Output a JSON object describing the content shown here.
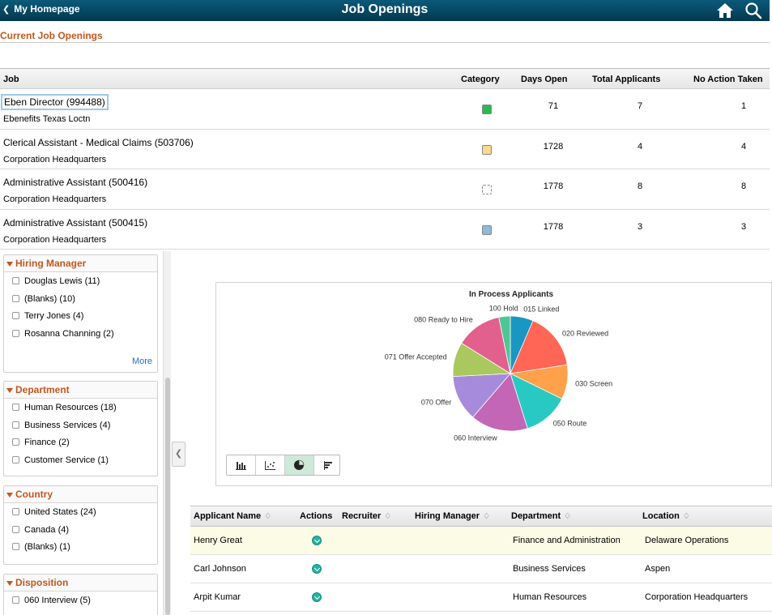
{
  "header": {
    "back_label": "My Homepage",
    "title": "Job Openings",
    "icons": [
      "home-icon",
      "search-icon"
    ]
  },
  "section_title": "Current Job Openings",
  "jobs": {
    "columns": [
      "Job",
      "Category",
      "Days Open",
      "Total Applicants",
      "No Action Taken"
    ],
    "rows": [
      {
        "name": "Eben Director (994488)",
        "location": "Ebenefits Texas Loctn",
        "category_color": "#2fb650",
        "days_open": "71",
        "total_applicants": "7",
        "no_action": "1"
      },
      {
        "name": "Clerical Assistant - Medical Claims (503706)",
        "location": "Corporation Headquarters",
        "category_color": "#f9d98e",
        "days_open": "1728",
        "total_applicants": "4",
        "no_action": "4"
      },
      {
        "name": "Administrative Assistant (500416)",
        "location": "Corporation Headquarters",
        "category_color": "#ffffff",
        "days_open": "1778",
        "total_applicants": "8",
        "no_action": "8"
      },
      {
        "name": "Administrative Assistant (500415)",
        "location": "Corporation Headquarters",
        "category_color": "#8fb9d6",
        "days_open": "1778",
        "total_applicants": "3",
        "no_action": "3"
      }
    ]
  },
  "facets": [
    {
      "title": "Hiring Manager",
      "options": [
        "Douglas Lewis (11)",
        "(Blanks) (10)",
        "Terry Jones (4)",
        "Rosanna Channing (2)"
      ],
      "more": "More"
    },
    {
      "title": "Department",
      "options": [
        "Human Resources (18)",
        "Business Services (4)",
        "Finance (2)",
        "Customer Service (1)"
      ]
    },
    {
      "title": "Country",
      "options": [
        "United States (24)",
        "Canada (4)",
        "(Blanks) (1)"
      ]
    },
    {
      "title": "Disposition",
      "options": [
        "060 Interview (5)"
      ]
    }
  ],
  "chart_data": {
    "type": "pie",
    "title": "In Process Applicants",
    "slices": [
      {
        "label": "015 Linked",
        "value": 2,
        "color": "#1a96c2"
      },
      {
        "label": "020 Reviewed",
        "value": 5,
        "color": "#ff6655"
      },
      {
        "label": "030 Screen",
        "value": 3,
        "color": "#ffa14a"
      },
      {
        "label": "050 Route",
        "value": 4,
        "color": "#28c9c3"
      },
      {
        "label": "060 Interview",
        "value": 5,
        "color": "#c266b5"
      },
      {
        "label": "070 Offer",
        "value": 4,
        "color": "#a68bdc"
      },
      {
        "label": "071 Offer Accepted",
        "value": 3,
        "color": "#a9c85e"
      },
      {
        "label": "080 Ready to Hire",
        "value": 4,
        "color": "#e2608e"
      },
      {
        "label": "100 Hold",
        "value": 1,
        "color": "#4fc792"
      }
    ]
  },
  "chart_tools": [
    "bar-chart-icon",
    "scatter-chart-icon",
    "pie-chart-icon",
    "horizontal-bar-icon"
  ],
  "applicants": {
    "columns": [
      "Applicant Name",
      "Actions",
      "Recruiter",
      "Hiring Manager",
      "Department",
      "Location"
    ],
    "rows": [
      {
        "name": "Henry Great",
        "recruiter": "",
        "hiring_manager": "",
        "department": "Finance and Administration",
        "location": "Delaware Operations"
      },
      {
        "name": "Carl Johnson",
        "recruiter": "",
        "hiring_manager": "",
        "department": "Business Services",
        "location": "Aspen"
      },
      {
        "name": "Arpit Kumar",
        "recruiter": "",
        "hiring_manager": "",
        "department": "Human Resources",
        "location": "Corporation Headquarters"
      }
    ]
  }
}
